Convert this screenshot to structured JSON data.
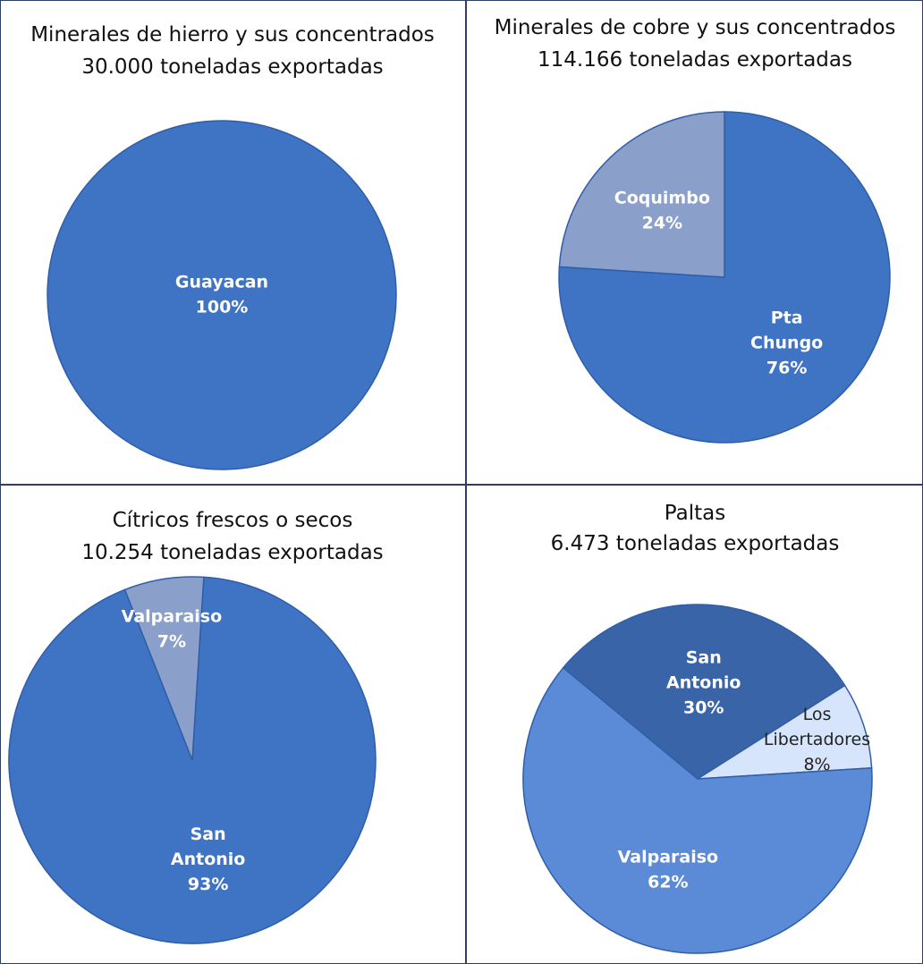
{
  "chart_data": [
    {
      "type": "pie",
      "title": "Minerales de hierro y sus concentrados",
      "subtitle": "30.000 toneladas exportadas",
      "slices": [
        {
          "name": "Guayacan",
          "value": 100,
          "label_pct": "100%",
          "color": "#3f73c4"
        }
      ]
    },
    {
      "type": "pie",
      "title": "Minerales de cobre y sus concentrados",
      "subtitle": "114.166 toneladas exportadas",
      "slices": [
        {
          "name": "Pta Chungo",
          "value": 76,
          "label_pct": "76%",
          "color": "#3f73c4"
        },
        {
          "name": "Coquimbo",
          "value": 24,
          "label_pct": "24%",
          "color": "#8a9fc9"
        }
      ]
    },
    {
      "type": "pie",
      "title": "Cítricos frescos o secos",
      "subtitle": "10.254 toneladas exportadas",
      "slices": [
        {
          "name": "San Antonio",
          "value": 93,
          "label_pct": "93%",
          "color": "#3f73c4"
        },
        {
          "name": "Valparaiso",
          "value": 7,
          "label_pct": "7%",
          "color": "#8a9fc9"
        }
      ]
    },
    {
      "type": "pie",
      "title": "Paltas",
      "subtitle": "6.473 toneladas exportadas",
      "slices": [
        {
          "name": "San Antonio",
          "value": 30,
          "label_pct": "30%",
          "color": "#3a64a8"
        },
        {
          "name": "Los Libertadores",
          "value": 8,
          "label_pct": "8%",
          "color": "#d6e5fb",
          "dark_label": true
        },
        {
          "name": "Valparaiso",
          "value": 62,
          "label_pct": "62%",
          "color": "#5b8ad6"
        }
      ]
    }
  ]
}
